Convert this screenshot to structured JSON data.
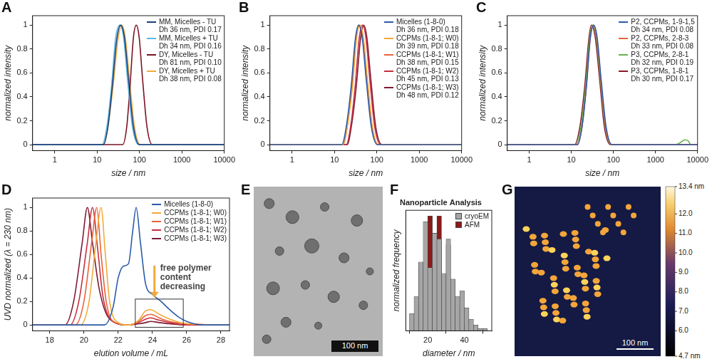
{
  "chart_data": [
    {
      "panel": "A",
      "type": "line",
      "log": "x",
      "grid": false,
      "legend": "upper right",
      "x_label": "size / nm",
      "y_label": "normalized intensity",
      "xlim": [
        0.3,
        10000
      ],
      "xticks": [
        1,
        10,
        100,
        1000,
        10000
      ],
      "ylim": [
        -0.05,
        1.08
      ],
      "yticks": [
        0,
        0.2,
        0.4,
        0.6,
        0.8,
        1
      ],
      "series": [
        {
          "name": "MM, Micelles - TU",
          "description": "Dh 36 nm, PDI 0.17",
          "color": "#1c3f78",
          "x": [
            0.3,
            14,
            18,
            23,
            29,
            36,
            44,
            55,
            72,
            100,
            10000
          ],
          "values": [
            0,
            0,
            0.15,
            0.5,
            0.88,
            1,
            0.9,
            0.55,
            0.15,
            0,
            0
          ]
        },
        {
          "name": "MM, Micelles + TU",
          "description": "Dh 34 nm, PDI 0.16",
          "color": "#5bb8e8",
          "x": [
            0.3,
            13,
            17,
            22,
            27,
            34,
            42,
            52,
            68,
            95,
            10000
          ],
          "values": [
            0,
            0,
            0.15,
            0.5,
            0.88,
            1,
            0.9,
            0.55,
            0.15,
            0,
            0
          ]
        },
        {
          "name": "DY, Micelles - TU",
          "description": "Dh 81 nm, PDI 0.10",
          "color": "#7a1424",
          "x": [
            0.3,
            40,
            50,
            60,
            72,
            84,
            98,
            118,
            150,
            200,
            10000
          ],
          "values": [
            0,
            0,
            0.15,
            0.5,
            0.9,
            1,
            0.9,
            0.55,
            0.15,
            0,
            0
          ]
        },
        {
          "name": "DY, Micelles + TU",
          "description": "Dh 38 nm, PDI 0.08",
          "color": "#f2a93b",
          "x": [
            0.3,
            14,
            18,
            24,
            31,
            38,
            46,
            58,
            76,
            105,
            10000
          ],
          "values": [
            0,
            0,
            0.15,
            0.5,
            0.88,
            1,
            0.9,
            0.55,
            0.15,
            0,
            0
          ]
        }
      ]
    },
    {
      "panel": "B",
      "type": "line",
      "log": "x",
      "grid": false,
      "legend": "upper right",
      "x_label": "size / nm",
      "y_label": "normalized intensity",
      "xlim": [
        0.3,
        10000
      ],
      "xticks": [
        1,
        10,
        100,
        1000,
        10000
      ],
      "ylim": [
        -0.05,
        1.08
      ],
      "yticks": [
        0,
        0.2,
        0.4,
        0.6,
        0.8,
        1
      ],
      "series": [
        {
          "name": "Micelles (1-8-0)",
          "description": "Dh 36 nm, PDI 0.18",
          "color": "#2b5ba8",
          "x": [
            0.3,
            15,
            19,
            25,
            31,
            37,
            45,
            56,
            74,
            103,
            10000
          ],
          "values": [
            0,
            0,
            0.15,
            0.5,
            0.88,
            1,
            0.9,
            0.55,
            0.15,
            0,
            0
          ]
        },
        {
          "name": "CCPMs (1-8-1; W0)",
          "description": "Dh 39 nm, PDI 0.18",
          "color": "#f2a93b",
          "x": [
            0.3,
            16,
            20,
            27,
            33,
            40,
            48,
            60,
            79,
            110,
            10000
          ],
          "values": [
            0,
            0,
            0.15,
            0.5,
            0.88,
            1,
            0.9,
            0.55,
            0.15,
            0,
            0
          ]
        },
        {
          "name": "CCPMs (1-8-1; W1)",
          "description": "Dh 38 nm, PDI 0.15",
          "color": "#e8623a",
          "x": [
            0.3,
            16,
            20,
            26,
            32,
            39,
            47,
            58,
            77,
            107,
            10000
          ],
          "values": [
            0,
            0,
            0.15,
            0.5,
            0.88,
            1,
            0.9,
            0.55,
            0.15,
            0,
            0
          ]
        },
        {
          "name": "CCPMs (1-8-1; W2)",
          "description": "Dh 45 nm, PDI 0.13",
          "color": "#c72c3e",
          "x": [
            0.3,
            19,
            24,
            31,
            38,
            46,
            55,
            68,
            89,
            124,
            10000
          ],
          "values": [
            0,
            0,
            0.15,
            0.5,
            0.88,
            1,
            0.9,
            0.55,
            0.15,
            0,
            0
          ]
        },
        {
          "name": "CCPMs (1-8-1; W3)",
          "description": "Dh 48 nm, PDI 0.12",
          "color": "#7d1a33",
          "x": [
            0.3,
            20,
            25,
            33,
            41,
            49,
            58,
            72,
            94,
            132,
            10000
          ],
          "values": [
            0,
            0,
            0.15,
            0.5,
            0.88,
            1,
            0.9,
            0.55,
            0.15,
            0,
            0
          ]
        }
      ]
    },
    {
      "panel": "C",
      "type": "line",
      "log": "x",
      "grid": false,
      "legend": "upper right",
      "x_label": "size / nm",
      "y_label": "normalized intensity",
      "xlim": [
        0.3,
        10000
      ],
      "xticks": [
        1,
        10,
        100,
        1000,
        10000
      ],
      "ylim": [
        -0.05,
        1.08
      ],
      "yticks": [
        0,
        0.2,
        0.4,
        0.6,
        0.8,
        1
      ],
      "series": [
        {
          "name": "P2, CCPMs, 1-9-1,5",
          "description": "Dh 34 nm, PDI 0.08",
          "color": "#2b5ba8",
          "x": [
            0.3,
            14,
            18,
            23,
            28,
            34,
            41,
            51,
            67,
            93,
            10000
          ],
          "values": [
            0,
            0,
            0.15,
            0.5,
            0.88,
            1,
            0.9,
            0.55,
            0.15,
            0,
            0
          ]
        },
        {
          "name": "P2, CCPMs, 2-8-3",
          "description": "Dh 33 nm, PDI 0.08",
          "color": "#e8623a",
          "x": [
            0.3,
            14,
            18,
            23,
            28,
            33,
            40,
            50,
            65,
            90,
            10000
          ],
          "values": [
            0,
            0,
            0.15,
            0.5,
            0.88,
            1,
            0.9,
            0.55,
            0.15,
            0,
            0
          ]
        },
        {
          "name": "P3, CCPMs, 2-8-1",
          "description": "Dh 32 nm, PDI 0.19",
          "color": "#6ab04c",
          "x": [
            0.3,
            13,
            17,
            22,
            27,
            32,
            39,
            49,
            64,
            88,
            3000,
            4000,
            5000,
            6000,
            7000,
            10000
          ],
          "values": [
            0,
            0,
            0.15,
            0.5,
            0.88,
            1,
            0.9,
            0.55,
            0.15,
            0,
            0,
            0.02,
            0.04,
            0.03,
            0,
            0
          ]
        },
        {
          "name": "P3, CCPMs, 1-8-1",
          "description": "Dh 30 nm, PDI 0.17",
          "color": "#8a1a2a",
          "x": [
            0.3,
            12,
            16,
            21,
            26,
            30,
            37,
            47,
            61,
            85,
            10000
          ],
          "values": [
            0,
            0,
            0.15,
            0.5,
            0.88,
            1,
            0.9,
            0.55,
            0.15,
            0,
            0
          ]
        }
      ]
    },
    {
      "panel": "D",
      "type": "line",
      "grid": false,
      "legend": "upper right",
      "x_label": "elution volume / mL",
      "y_label": "UVD normalized (λ = 230 nm)",
      "xlim": [
        17,
        28.5
      ],
      "xticks": [
        18,
        20,
        22,
        24,
        26,
        28
      ],
      "ylim": [
        -0.05,
        1.08
      ],
      "yticks": [
        0,
        0.2,
        0.4,
        0.6,
        0.8,
        1
      ],
      "annotation": "free polymer content decreasing",
      "highlight": {
        "x": [
          23,
          25.8
        ],
        "y": [
          -0.02,
          0.22
        ]
      },
      "series": [
        {
          "name": "Micelles (1-8-0)",
          "color": "#2b5ba8",
          "x": [
            17,
            21.2,
            21.7,
            22.0,
            22.3,
            22.6,
            22.85,
            23.05,
            23.3,
            23.6,
            24.0,
            24.5,
            25.0,
            25.5,
            26.0,
            27.0,
            28.5
          ],
          "values": [
            0,
            0,
            0.15,
            0.4,
            0.5,
            0.52,
            0.8,
            1,
            0.7,
            0.35,
            0.26,
            0.2,
            0.13,
            0.07,
            0.03,
            0,
            0
          ]
        },
        {
          "name": "CCPMs (1-8-1; W0)",
          "color": "#f2a93b",
          "x": [
            17,
            19.8,
            20.3,
            20.7,
            21.0,
            21.25,
            21.5,
            21.9,
            22.6,
            23.2,
            23.6,
            23.9,
            24.4,
            25.0,
            26.0,
            28.5
          ],
          "values": [
            0,
            0,
            0.2,
            0.7,
            1,
            0.6,
            0.2,
            0.03,
            0,
            0.04,
            0.12,
            0.13,
            0.09,
            0.05,
            0.01,
            0
          ]
        },
        {
          "name": "CCPMs (1-8-1; W1)",
          "color": "#e8623a",
          "x": [
            17,
            19.5,
            20.0,
            20.45,
            20.75,
            21.0,
            21.3,
            21.7,
            22.6,
            23.2,
            23.6,
            23.9,
            24.4,
            25.0,
            26.0,
            28.5
          ],
          "values": [
            0,
            0,
            0.2,
            0.7,
            1,
            0.6,
            0.2,
            0.03,
            0,
            0.03,
            0.08,
            0.09,
            0.06,
            0.03,
            0.01,
            0
          ]
        },
        {
          "name": "CCPMs (1-8-1; W2)",
          "color": "#c72c3e",
          "x": [
            17,
            19.2,
            19.7,
            20.2,
            20.5,
            20.8,
            21.1,
            21.6,
            22.6,
            23.2,
            23.6,
            23.9,
            24.4,
            25.0,
            26.0,
            28.5
          ],
          "values": [
            0,
            0,
            0.2,
            0.7,
            1,
            0.65,
            0.25,
            0.04,
            0,
            0.02,
            0.05,
            0.06,
            0.04,
            0.02,
            0,
            0
          ]
        },
        {
          "name": "CCPMs (1-8-1; W3)",
          "color": "#7d1a33",
          "x": [
            17,
            18.9,
            19.4,
            19.9,
            20.2,
            20.5,
            20.9,
            21.5,
            22.6,
            23.2,
            23.6,
            23.9,
            24.4,
            25.0,
            26.0,
            28.5
          ],
          "values": [
            0,
            0,
            0.2,
            0.7,
            1,
            0.7,
            0.3,
            0.05,
            0,
            0.01,
            0.02,
            0.03,
            0.02,
            0.01,
            0,
            0
          ]
        }
      ]
    },
    {
      "panel": "F",
      "type": "histogram",
      "title": "Nanoparticle Analysis",
      "grid": false,
      "legend": "upper right",
      "tick_labels": "x",
      "x_label": "diameter / nm",
      "y_label": "normalized frequency",
      "xlim": [
        8,
        55
      ],
      "xticks": [
        20,
        40
      ],
      "ylim": [
        0,
        1.05
      ],
      "bins": [
        10,
        12.5,
        15,
        17.5,
        20,
        22.5,
        25,
        27.5,
        30,
        32.5,
        35,
        37.5,
        40,
        42.5,
        45,
        47.5,
        50,
        52.5
      ],
      "series": [
        {
          "name": "cryoEM",
          "color": "#a6a6a6",
          "values": [
            0.15,
            0.3,
            0.6,
            0.95,
            0.55,
            0.85,
            0.8,
            0.5,
            0.8,
            0.45,
            0.3,
            0.35,
            0.2,
            0.1,
            0.05,
            0.02,
            0.02
          ]
        },
        {
          "name": "AFM",
          "color": "#8b1a1a",
          "values": [
            0,
            0.1,
            0.55,
            0.55,
            1.0,
            0.5,
            1.0,
            0.4,
            0.75,
            0.25,
            0.2,
            0.05,
            0,
            0,
            0,
            0,
            0
          ]
        }
      ]
    }
  ],
  "images": [
    {
      "panel": "E",
      "type": "image",
      "scale_bar": "100 nm"
    },
    {
      "panel": "G",
      "type": "image",
      "scale_bar": "100 nm",
      "colorbar": {
        "range": [
          4.7,
          13.4
        ],
        "ticks": [
          {
            "value": 4.7,
            "label": "4.7 nm"
          },
          {
            "value": 6,
            "label": "6.0"
          },
          {
            "value": 7,
            "label": "7.0"
          },
          {
            "value": 8,
            "label": "8.0"
          },
          {
            "value": 9,
            "label": "9.0"
          },
          {
            "value": 10,
            "label": "10.0"
          },
          {
            "value": 11,
            "label": "11.0"
          },
          {
            "value": 12,
            "label": "12.0"
          },
          {
            "value": 13.4,
            "label": "13.4 nm"
          }
        ]
      }
    }
  ]
}
